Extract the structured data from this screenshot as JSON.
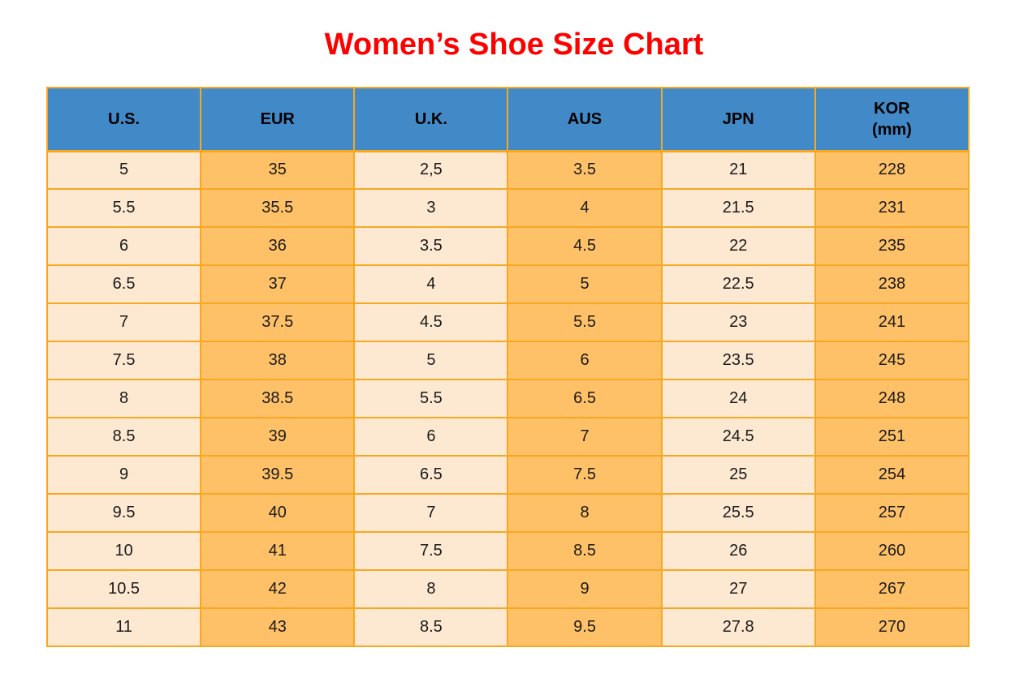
{
  "title": "Women’s Shoe Size Chart",
  "colors": {
    "title_red": "#ff0000",
    "header_blue": "#4189c7",
    "cell_cream": "#fde9d1",
    "cell_orange": "#ffc168",
    "grid_border": "#f7a823",
    "text": "#1a1a1a"
  },
  "table": {
    "columns": [
      {
        "label": "U.S."
      },
      {
        "label": "EUR"
      },
      {
        "label": "U.K."
      },
      {
        "label": "AUS"
      },
      {
        "label": "JPN"
      },
      {
        "label": "KOR",
        "sublabel": "(mm)"
      }
    ],
    "rows": [
      [
        "5",
        "35",
        "2,5",
        "3.5",
        "21",
        "228"
      ],
      [
        "5.5",
        "35.5",
        "3",
        "4",
        "21.5",
        "231"
      ],
      [
        "6",
        "36",
        "3.5",
        "4.5",
        "22",
        "235"
      ],
      [
        "6.5",
        "37",
        "4",
        "5",
        "22.5",
        "238"
      ],
      [
        "7",
        "37.5",
        "4.5",
        "5.5",
        "23",
        "241"
      ],
      [
        "7.5",
        "38",
        "5",
        "6",
        "23.5",
        "245"
      ],
      [
        "8",
        "38.5",
        "5.5",
        "6.5",
        "24",
        "248"
      ],
      [
        "8.5",
        "39",
        "6",
        "7",
        "24.5",
        "251"
      ],
      [
        "9",
        "39.5",
        "6.5",
        "7.5",
        "25",
        "254"
      ],
      [
        "9.5",
        "40",
        "7",
        "8",
        "25.5",
        "257"
      ],
      [
        "10",
        "41",
        "7.5",
        "8.5",
        "26",
        "260"
      ],
      [
        "10.5",
        "42",
        "8",
        "9",
        "27",
        "267"
      ],
      [
        "11",
        "43",
        "8.5",
        "9.5",
        "27.8",
        "270"
      ]
    ]
  }
}
